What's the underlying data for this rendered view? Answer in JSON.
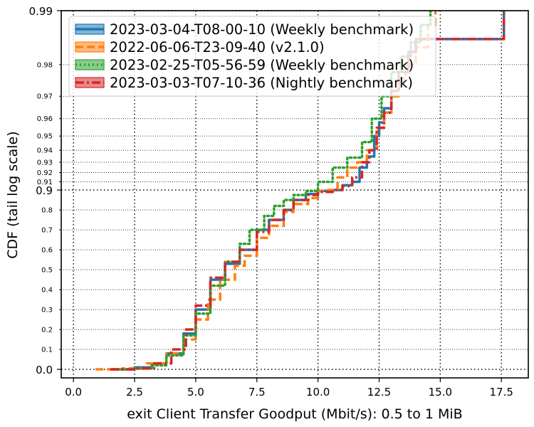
{
  "chart_data": {
    "type": "line",
    "title": "",
    "xlabel": "exit Client Transfer Goodput (Mbit/s): 0.5 to 1 MiB",
    "ylabel": "CDF (tail log scale)",
    "xlim": [
      -0.5,
      18.6
    ],
    "xticks": [
      {
        "value": 0.0,
        "label": "0.0"
      },
      {
        "value": 2.5,
        "label": "2.5"
      },
      {
        "value": 5.0,
        "label": "5.0"
      },
      {
        "value": 7.5,
        "label": "7.5"
      },
      {
        "value": 10.0,
        "label": "10.0"
      },
      {
        "value": 12.5,
        "label": "12.5"
      },
      {
        "value": 15.0,
        "label": "15.0"
      },
      {
        "value": 17.5,
        "label": "17.5"
      }
    ],
    "yscale": "tail-log (linear below 0.9, log of 1-p above 0.9)",
    "ylim": [
      0.0,
      0.99
    ],
    "yticks_major": [
      {
        "value": 0.0,
        "label": "0.0"
      },
      {
        "value": 0.9,
        "label": "0.9"
      },
      {
        "value": 0.99,
        "label": "0.99"
      }
    ],
    "yticks_minor": [
      {
        "value": 0.1,
        "label": "0.1"
      },
      {
        "value": 0.2,
        "label": "0.2"
      },
      {
        "value": 0.3,
        "label": "0.3"
      },
      {
        "value": 0.4,
        "label": "0.4"
      },
      {
        "value": 0.5,
        "label": "0.5"
      },
      {
        "value": 0.6,
        "label": "0.6"
      },
      {
        "value": 0.7,
        "label": "0.7"
      },
      {
        "value": 0.8,
        "label": "0.8"
      },
      {
        "value": 0.91,
        "label": "0.91"
      },
      {
        "value": 0.92,
        "label": "0.92"
      },
      {
        "value": 0.93,
        "label": "0.93"
      },
      {
        "value": 0.94,
        "label": "0.94"
      },
      {
        "value": 0.95,
        "label": "0.95"
      },
      {
        "value": 0.96,
        "label": "0.96"
      },
      {
        "value": 0.97,
        "label": "0.97"
      },
      {
        "value": 0.98,
        "label": "0.98"
      }
    ],
    "grid": true,
    "legend_position": "top-left",
    "series": [
      {
        "name": "2023-03-04-T08-00-10 (Weekly benchmark)",
        "color": "#1f77b4",
        "linestyle": "solid",
        "points": [
          [
            1.6,
            0.0
          ],
          [
            2.5,
            0.01
          ],
          [
            3.2,
            0.03
          ],
          [
            3.8,
            0.08
          ],
          [
            4.5,
            0.18
          ],
          [
            5.0,
            0.3
          ],
          [
            5.6,
            0.45
          ],
          [
            6.2,
            0.53
          ],
          [
            6.8,
            0.6
          ],
          [
            7.5,
            0.7
          ],
          [
            8.0,
            0.75
          ],
          [
            8.6,
            0.8
          ],
          [
            9.0,
            0.85
          ],
          [
            9.5,
            0.88
          ],
          [
            10.0,
            0.895
          ],
          [
            10.6,
            0.9
          ],
          [
            11.0,
            0.906
          ],
          [
            11.4,
            0.91
          ],
          [
            11.7,
            0.925
          ],
          [
            12.0,
            0.935
          ],
          [
            12.3,
            0.95
          ],
          [
            12.5,
            0.958
          ],
          [
            12.7,
            0.965
          ],
          [
            13.0,
            0.972
          ],
          [
            13.3,
            0.978
          ],
          [
            13.7,
            0.983
          ],
          [
            14.0,
            0.9856
          ],
          [
            17.6,
            0.9856
          ],
          [
            17.6,
            0.99
          ]
        ]
      },
      {
        "name": "2022-06-06-T23-09-40 (v2.1.0)",
        "color": "#ff7f0e",
        "linestyle": "dashed",
        "points": [
          [
            0.9,
            0.0
          ],
          [
            2.0,
            0.005
          ],
          [
            3.0,
            0.03
          ],
          [
            3.8,
            0.08
          ],
          [
            4.5,
            0.15
          ],
          [
            5.0,
            0.25
          ],
          [
            5.5,
            0.35
          ],
          [
            6.0,
            0.45
          ],
          [
            6.6,
            0.52
          ],
          [
            7.0,
            0.57
          ],
          [
            7.5,
            0.66
          ],
          [
            8.0,
            0.72
          ],
          [
            8.6,
            0.79
          ],
          [
            9.0,
            0.83
          ],
          [
            9.6,
            0.86
          ],
          [
            10.0,
            0.895
          ],
          [
            10.4,
            0.9
          ],
          [
            10.8,
            0.915
          ],
          [
            11.2,
            0.925
          ],
          [
            11.6,
            0.93
          ],
          [
            12.0,
            0.94
          ],
          [
            12.4,
            0.955
          ],
          [
            12.7,
            0.963
          ],
          [
            13.0,
            0.97
          ],
          [
            13.3,
            0.976
          ],
          [
            13.6,
            0.98
          ],
          [
            14.0,
            0.984
          ],
          [
            14.5,
            0.988
          ],
          [
            14.8,
            0.99
          ]
        ]
      },
      {
        "name": "2023-02-25-T05-56-59 (Weekly benchmark)",
        "color": "#2ca02c",
        "linestyle": "dotted",
        "points": [
          [
            1.8,
            0.0
          ],
          [
            2.5,
            0.005
          ],
          [
            3.2,
            0.02
          ],
          [
            3.8,
            0.07
          ],
          [
            4.5,
            0.17
          ],
          [
            5.0,
            0.28
          ],
          [
            5.6,
            0.42
          ],
          [
            6.2,
            0.54
          ],
          [
            6.8,
            0.63
          ],
          [
            7.2,
            0.7
          ],
          [
            7.8,
            0.77
          ],
          [
            8.2,
            0.82
          ],
          [
            8.6,
            0.85
          ],
          [
            9.0,
            0.875
          ],
          [
            9.5,
            0.895
          ],
          [
            10.0,
            0.91
          ],
          [
            10.6,
            0.925
          ],
          [
            11.2,
            0.934
          ],
          [
            11.8,
            0.946
          ],
          [
            12.2,
            0.96
          ],
          [
            12.6,
            0.97
          ],
          [
            13.0,
            0.978
          ],
          [
            13.4,
            0.982
          ],
          [
            13.8,
            0.985
          ],
          [
            14.2,
            0.988
          ],
          [
            14.6,
            0.99
          ]
        ]
      },
      {
        "name": "2023-03-03-T07-10-36 (Nightly benchmark)",
        "color": "#d62728",
        "linestyle": "dashdot",
        "points": [
          [
            1.5,
            0.0
          ],
          [
            2.6,
            0.005
          ],
          [
            3.3,
            0.03
          ],
          [
            4.0,
            0.1
          ],
          [
            4.6,
            0.2
          ],
          [
            5.0,
            0.32
          ],
          [
            5.6,
            0.46
          ],
          [
            6.2,
            0.54
          ],
          [
            6.8,
            0.6
          ],
          [
            7.5,
            0.69
          ],
          [
            8.0,
            0.75
          ],
          [
            8.6,
            0.8
          ],
          [
            9.0,
            0.85
          ],
          [
            9.6,
            0.875
          ],
          [
            10.0,
            0.89
          ],
          [
            10.6,
            0.9
          ],
          [
            11.0,
            0.905
          ],
          [
            11.4,
            0.915
          ],
          [
            11.8,
            0.93
          ],
          [
            12.1,
            0.94
          ],
          [
            12.4,
            0.955
          ],
          [
            12.7,
            0.963
          ],
          [
            13.0,
            0.972
          ],
          [
            13.3,
            0.978
          ],
          [
            13.7,
            0.983
          ],
          [
            14.0,
            0.9856
          ],
          [
            17.6,
            0.9856
          ],
          [
            17.6,
            0.99
          ]
        ]
      }
    ]
  }
}
